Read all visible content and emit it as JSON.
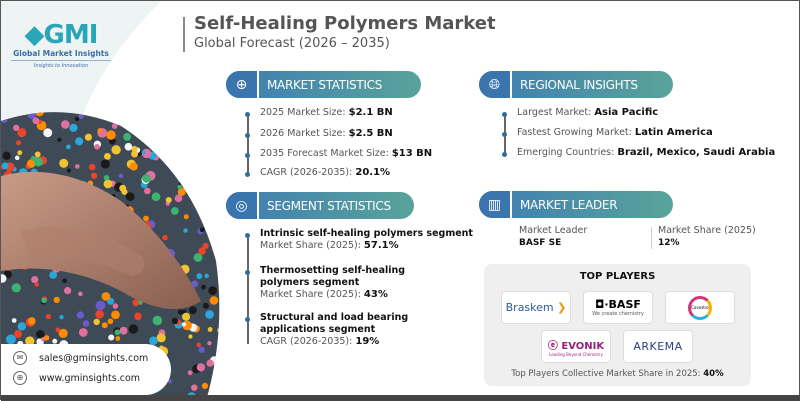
{
  "brand": {
    "logo_text": "GMI",
    "name": "Global Market Insights",
    "tagline": "Insights to Innovation"
  },
  "header": {
    "title": "Self-Healing Polymers Market",
    "subtitle": "Global Forecast (2026 – 2035)"
  },
  "market_statistics": {
    "title": "MARKET STATISTICS",
    "icon": "globe-chart-icon",
    "items": [
      {
        "label": "2025 Market Size: ",
        "value": "$2.1 BN"
      },
      {
        "label": "2026 Market Size: ",
        "value": "$2.5 BN"
      },
      {
        "label": "2035 Forecast Market Size: ",
        "value": "$13 BN"
      },
      {
        "label": "CAGR (2026-2035): ",
        "value": "20.1%"
      }
    ]
  },
  "regional_insights": {
    "title": "REGIONAL INSIGHTS",
    "icon": "globe-icon",
    "items": [
      {
        "label": "Largest Market: ",
        "value": "Asia Pacific"
      },
      {
        "label": "Fastest Growing Market: ",
        "value": "Latin America"
      },
      {
        "label": "Emerging Countries:  ",
        "value": "Brazil, Mexico, Saudi Arabia"
      }
    ]
  },
  "segment_statistics": {
    "title": "SEGMENT STATISTICS",
    "icon": "segment-chart-icon",
    "items": [
      {
        "segment": "Intrinsic self-healing polymers segment",
        "label": "Market Share (2025): ",
        "value": "57.1%"
      },
      {
        "segment": "Thermosetting self-healing polymers segment",
        "label": "Market Share (2025): ",
        "value": "43%"
      },
      {
        "segment": "Structural and load bearing applications segment",
        "label": "CAGR (2026-2035): ",
        "value": "19%"
      }
    ]
  },
  "market_leader": {
    "title": "MARKET LEADER",
    "icon": "building-chart-icon",
    "leader_label": "Market Leader",
    "leader": "BASF SE",
    "share_label": "Market Share (2025)",
    "share": "12%"
  },
  "top_players": {
    "title": "TOP PLAYERS",
    "players": [
      "Braskem",
      "BASF",
      "Covestro",
      "EVONIK",
      "ARKEMA"
    ],
    "basf_tagline": "We create chemistry",
    "evonik_tagline": "Leading Beyond Chemistry",
    "footer_label": "Top Players Collective Market Share in 2025: ",
    "footer_value": "40%"
  },
  "contact": {
    "email": "sales@gminsights.com",
    "website": "www.gminsights.com"
  },
  "colors": {
    "accent_blue": "#3d7db3",
    "accent_teal": "#5aa39a",
    "text_dark": "#111111"
  }
}
